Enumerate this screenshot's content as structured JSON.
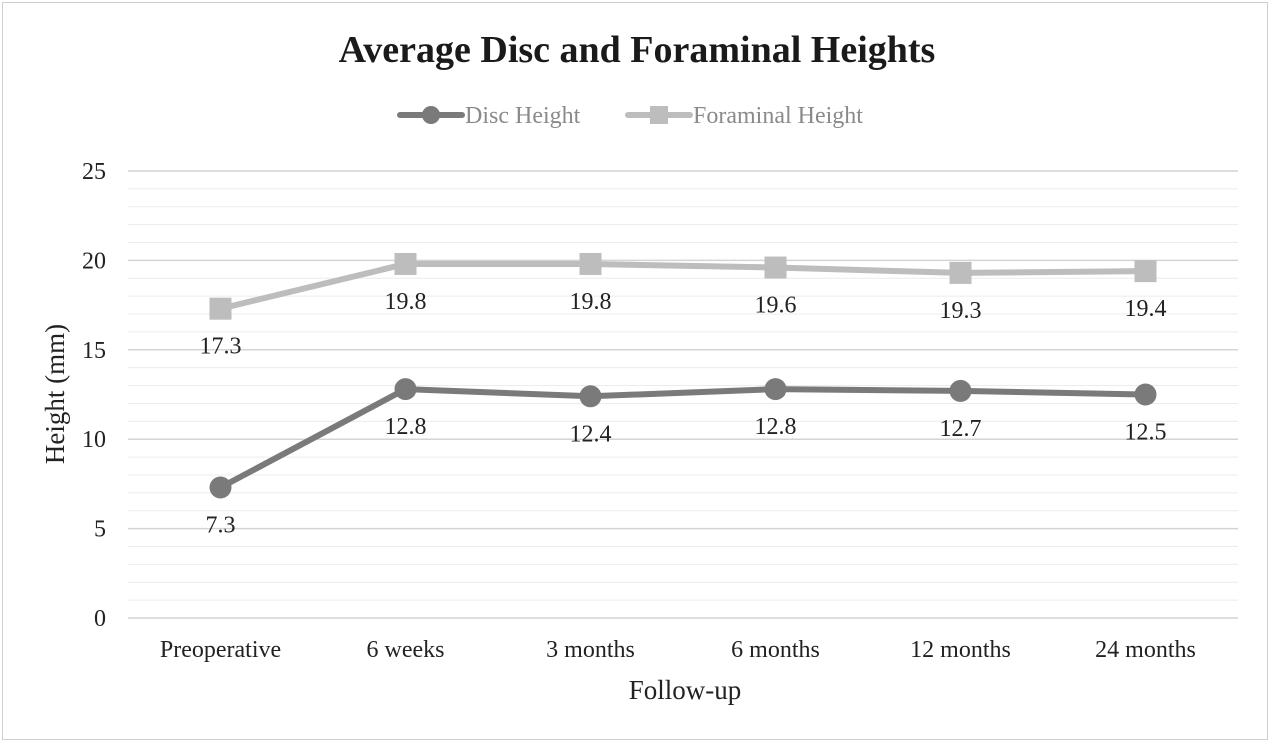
{
  "chart_data": {
    "type": "line",
    "title": "Average Disc and Foraminal Heights",
    "xlabel": "Follow-up",
    "ylabel": "Height (mm)",
    "categories": [
      "Preoperative",
      "6 weeks",
      "3 months",
      "6 months",
      "12 months",
      "24 months"
    ],
    "ylim": [
      0,
      25
    ],
    "yticks": [
      0,
      5,
      10,
      15,
      20,
      25
    ],
    "grid": true,
    "legend_position": "top",
    "series": [
      {
        "name": "Disc Height",
        "values": [
          7.3,
          12.8,
          12.4,
          12.8,
          12.7,
          12.5
        ],
        "color": "#7a7a7a",
        "marker": "circle"
      },
      {
        "name": "Foraminal Height",
        "values": [
          17.3,
          19.8,
          19.8,
          19.6,
          19.3,
          19.4
        ],
        "color": "#bdbdbd",
        "marker": "square"
      }
    ]
  }
}
